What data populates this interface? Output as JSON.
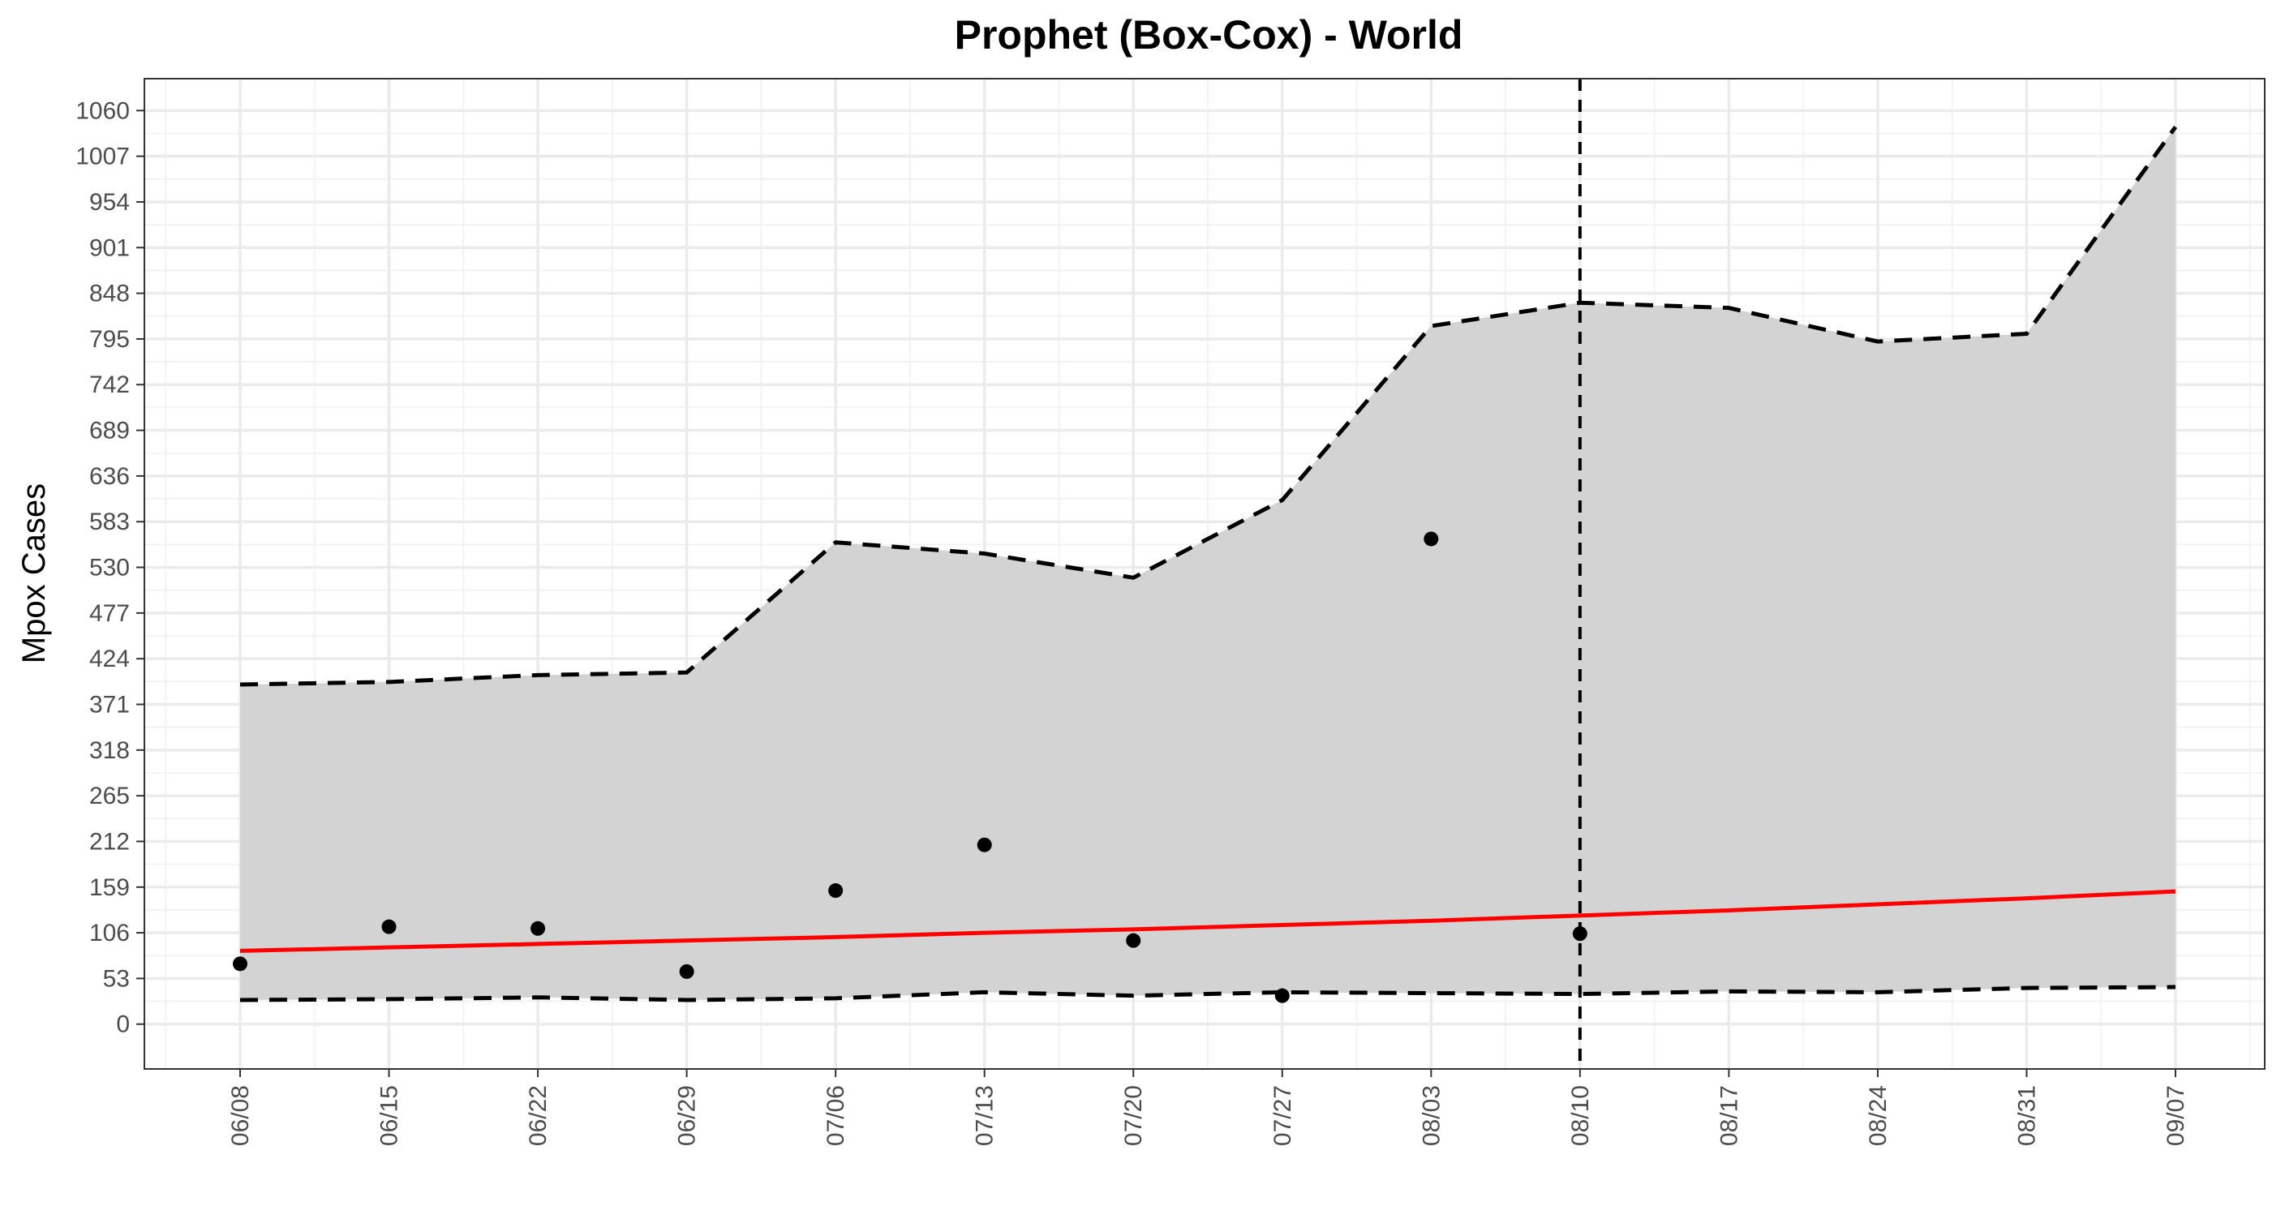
{
  "chart_data": {
    "type": "line",
    "title": "Prophet (Box-Cox) - World",
    "xlabel": "",
    "ylabel": "Mpox Cases",
    "x": [
      "06/08",
      "06/15",
      "06/22",
      "06/29",
      "07/06",
      "07/13",
      "07/20",
      "07/27",
      "08/03",
      "08/10",
      "08/17",
      "08/24",
      "08/31",
      "09/07"
    ],
    "y_ticks": [
      0,
      53,
      106,
      159,
      212,
      265,
      318,
      371,
      424,
      477,
      530,
      583,
      636,
      689,
      742,
      795,
      848,
      901,
      954,
      1007,
      1060
    ],
    "y_tick_labels": [
      "0",
      "53",
      "106",
      "159",
      "212",
      "265",
      "318",
      "371",
      "424",
      "477",
      "530",
      "583",
      "636",
      "689",
      "742",
      "795",
      "848",
      "901",
      "954",
      "1007",
      "1060"
    ],
    "ylim": [
      -52,
      1097
    ],
    "forecast_start": "08/10",
    "series": [
      {
        "role": "observed",
        "style": "points",
        "color": "#000000",
        "values": [
          70,
          113,
          111,
          61,
          155,
          208,
          97,
          33,
          563,
          105,
          null,
          null,
          null,
          null
        ]
      },
      {
        "role": "fitted",
        "style": "line",
        "color": "#ff0000",
        "values": [
          85,
          89,
          93,
          97,
          101,
          106,
          110,
          115,
          120,
          126,
          132,
          139,
          146,
          154
        ]
      },
      {
        "role": "upper",
        "style": "dashed",
        "color": "#000000",
        "values": [
          394,
          397,
          405,
          408,
          559,
          546,
          518,
          608,
          810,
          837,
          831,
          792,
          801,
          1041
        ]
      },
      {
        "role": "lower",
        "style": "dashed",
        "color": "#000000",
        "values": [
          28,
          29,
          31,
          28,
          30,
          37,
          33,
          37,
          36,
          35,
          38,
          37,
          42,
          43
        ]
      }
    ],
    "band_color": "#d3d3d3",
    "grid": true
  }
}
